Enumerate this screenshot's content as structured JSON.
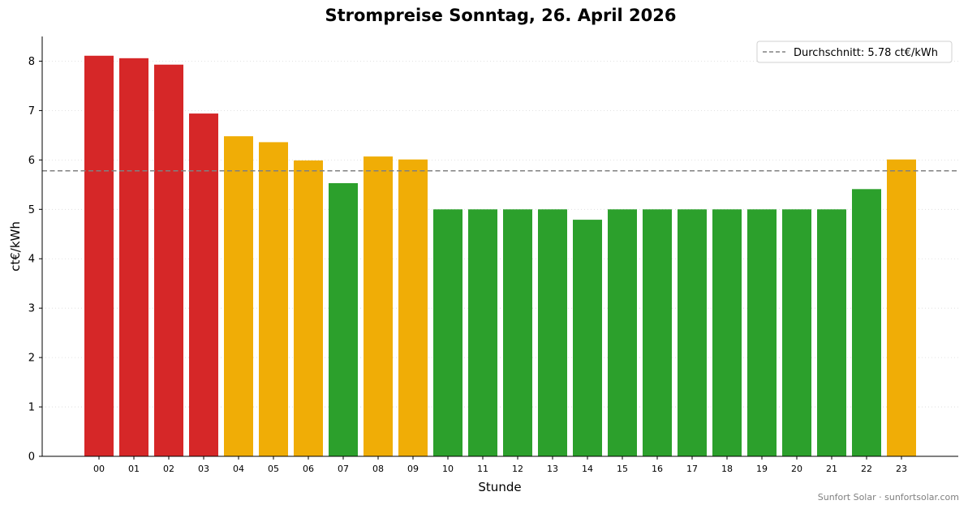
{
  "chart_data": {
    "type": "bar",
    "title": "Strompreise Sonntag, 26. April 2026",
    "xlabel": "Stunde",
    "ylabel": "ct€/kWh",
    "ylim": [
      0,
      8.5
    ],
    "yticks": [
      0,
      1,
      2,
      3,
      4,
      5,
      6,
      7,
      8
    ],
    "grid": "horizontal dotted",
    "categories": [
      "00",
      "01",
      "02",
      "03",
      "04",
      "05",
      "06",
      "07",
      "08",
      "09",
      "10",
      "11",
      "12",
      "13",
      "14",
      "15",
      "16",
      "17",
      "18",
      "19",
      "20",
      "21",
      "22",
      "23"
    ],
    "values": [
      8.11,
      8.06,
      7.93,
      6.94,
      6.48,
      6.36,
      5.99,
      5.53,
      6.07,
      6.01,
      5.0,
      5.0,
      5.0,
      5.0,
      4.79,
      5.0,
      5.0,
      5.0,
      5.0,
      5.0,
      5.0,
      5.0,
      5.41,
      6.01
    ],
    "bar_colors": [
      "#d62728",
      "#d62728",
      "#d62728",
      "#d62728",
      "#f0ad06",
      "#f0ad06",
      "#f0ad06",
      "#2ca02c",
      "#f0ad06",
      "#f0ad06",
      "#2ca02c",
      "#2ca02c",
      "#2ca02c",
      "#2ca02c",
      "#2ca02c",
      "#2ca02c",
      "#2ca02c",
      "#2ca02c",
      "#2ca02c",
      "#2ca02c",
      "#2ca02c",
      "#2ca02c",
      "#2ca02c",
      "#f0ad06"
    ],
    "average": {
      "value": 5.78,
      "label": "Durchschnitt: 5.78 ct€/kWh",
      "color": "#808080",
      "style": "dashed"
    },
    "legend_position": "top-right"
  },
  "footer": {
    "credit": "Sunfort Solar · sunfortsolar.com"
  }
}
